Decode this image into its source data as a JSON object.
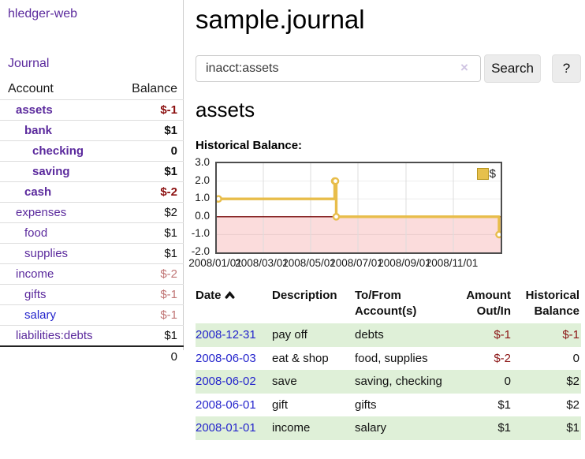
{
  "app": {
    "title": "hledger-web"
  },
  "sidebar": {
    "journal_link": "Journal",
    "account_header": "Account",
    "balance_header": "Balance",
    "accounts": [
      {
        "name": "assets",
        "balance": "$-1"
      },
      {
        "name": "bank",
        "balance": "$1"
      },
      {
        "name": "checking",
        "balance": "0"
      },
      {
        "name": "saving",
        "balance": "$1"
      },
      {
        "name": "cash",
        "balance": "$-2"
      },
      {
        "name": "expenses",
        "balance": "$2"
      },
      {
        "name": "food",
        "balance": "$1"
      },
      {
        "name": "supplies",
        "balance": "$1"
      },
      {
        "name": "income",
        "balance": "$-2"
      },
      {
        "name": "gifts",
        "balance": "$-1"
      },
      {
        "name": "salary",
        "balance": "$-1"
      },
      {
        "name": "liabilities:debts",
        "balance": "$1"
      }
    ],
    "total": "0"
  },
  "main": {
    "title": "sample.journal",
    "search": {
      "value": "inacct:assets",
      "clear_icon": "×",
      "search_button": "Search",
      "help_button": "?"
    },
    "account_heading": "assets",
    "chart_title": "Historical Balance:"
  },
  "chart_data": {
    "type": "line",
    "step": true,
    "title": "Historical Balance",
    "ylim": [
      -2,
      3
    ],
    "yticks": [
      "3.0",
      "2.0",
      "1.0",
      "0.0",
      "-1.0",
      "-2.0"
    ],
    "xticks": [
      "2008/01/01",
      "2008/03/01",
      "2008/05/01",
      "2008/07/01",
      "2008/09/01",
      "2008/11/01"
    ],
    "series": [
      {
        "name": "$",
        "points": [
          {
            "date": "2008/01/01",
            "value": 1
          },
          {
            "date": "2008/06/01",
            "value": 2
          },
          {
            "date": "2008/06/02",
            "value": 2
          },
          {
            "date": "2008/06/03",
            "value": 0
          },
          {
            "date": "2008/12/31",
            "value": -1
          }
        ]
      }
    ],
    "legend": {
      "label": "$",
      "position": "top-right"
    },
    "colors": {
      "line": "#e8bd4a",
      "marker_fill": "#ffffff",
      "legend_swatch": "#e6c04d",
      "negative_region": "#fbdcdc",
      "zero_line": "#7a0d0d",
      "grid": "#dddddd"
    }
  },
  "register": {
    "headers": {
      "date": "Date",
      "description": "Description",
      "account": "To/From Account(s)",
      "amount": "Amount Out/In",
      "balance": "Historical Balance"
    },
    "sort_icon": "chevron-up",
    "rows": [
      {
        "date": "2008-12-31",
        "description": "pay off",
        "account": "debts",
        "amount": "$-1",
        "balance": "$-1"
      },
      {
        "date": "2008-06-03",
        "description": "eat & shop",
        "account": "food, supplies",
        "amount": "$-2",
        "balance": "0"
      },
      {
        "date": "2008-06-02",
        "description": "save",
        "account": "saving, checking",
        "amount": "0",
        "balance": "$2"
      },
      {
        "date": "2008-06-01",
        "description": "gift",
        "account": "gifts",
        "amount": "$1",
        "balance": "$2"
      },
      {
        "date": "2008-01-01",
        "description": "income",
        "account": "salary",
        "amount": "$1",
        "balance": "$1"
      }
    ]
  }
}
